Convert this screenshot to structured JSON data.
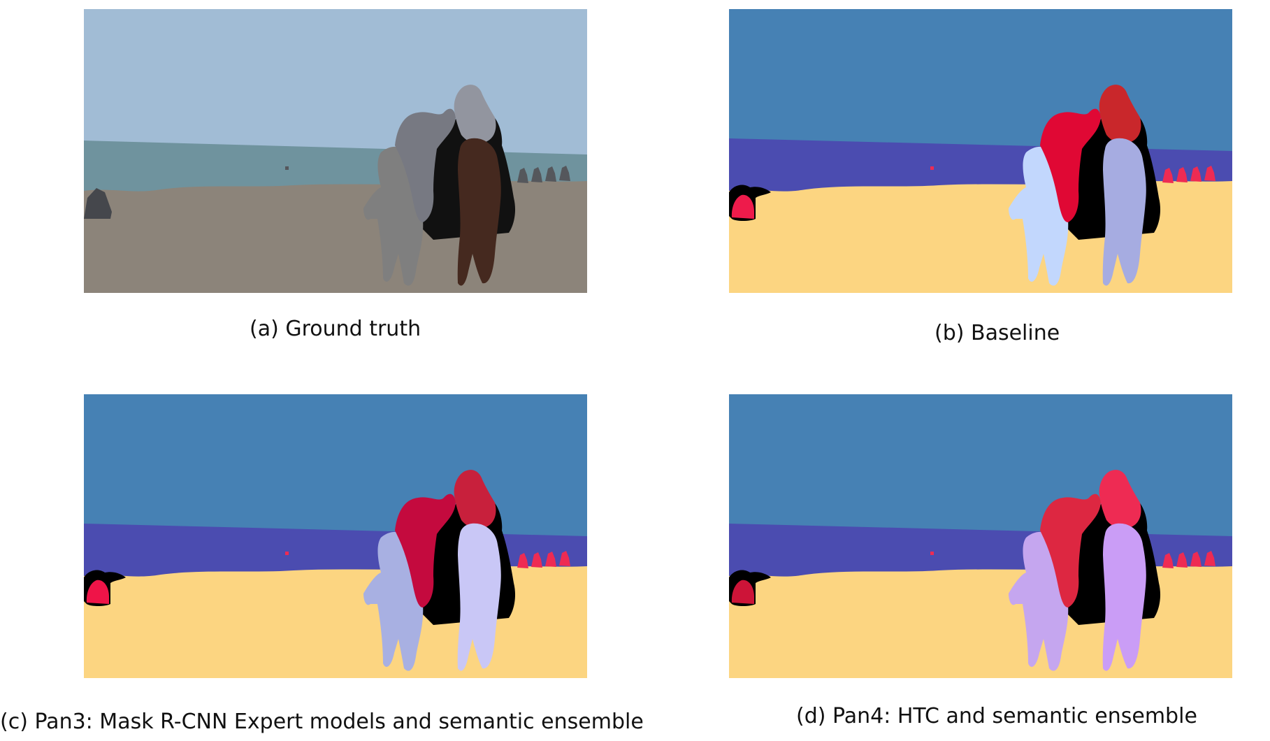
{
  "panels": [
    {
      "id": "a",
      "caption": "(a) Ground truth",
      "colors": {
        "sky": "#a1bcd5",
        "sea": "#6f939e",
        "sand": "#8c847a",
        "rock": "#45474c",
        "rider_left": "#777982",
        "rider_right": "#92959f",
        "horse_left": "#7f7f7f",
        "horse_right": "#45291f",
        "background_people": "#55575c",
        "dark_outline": "#111111"
      }
    },
    {
      "id": "b",
      "caption": "(b) Baseline",
      "colors": {
        "sky": "#4681b4",
        "sea": "#4b4cb0",
        "sand": "#fcd581",
        "rock": "#ee1b4b",
        "rider_left": "#e00834",
        "rider_right": "#c9272b",
        "horse_left": "#c2d7fd",
        "horse_right": "#a6ace1",
        "background_people": "#ee2b53",
        "dark_outline": "#000000"
      }
    },
    {
      "id": "c",
      "caption": "(c) Pan3: Mask R-CNN Expert models and semantic ensemble",
      "colors": {
        "sky": "#4681b4",
        "sea": "#4b4cb0",
        "sand": "#fcd581",
        "rock": "#ef1448",
        "rider_left": "#c40a3e",
        "rider_right": "#c8203c",
        "horse_left": "#a8b0e2",
        "horse_right": "#c9c7f6",
        "background_people": "#ee2b53",
        "dark_outline": "#000000"
      }
    },
    {
      "id": "d",
      "caption": "(d) Pan4: HTC and semantic ensemble",
      "colors": {
        "sky": "#4681b4",
        "sea": "#4b4cb0",
        "sand": "#fcd581",
        "rock": "#cd1438",
        "rider_left": "#dd2741",
        "rider_right": "#ee2b53",
        "horse_left": "#c5a6ef",
        "horse_right": "#ca9df6",
        "background_people": "#ee2b53",
        "dark_outline": "#000000"
      }
    }
  ]
}
